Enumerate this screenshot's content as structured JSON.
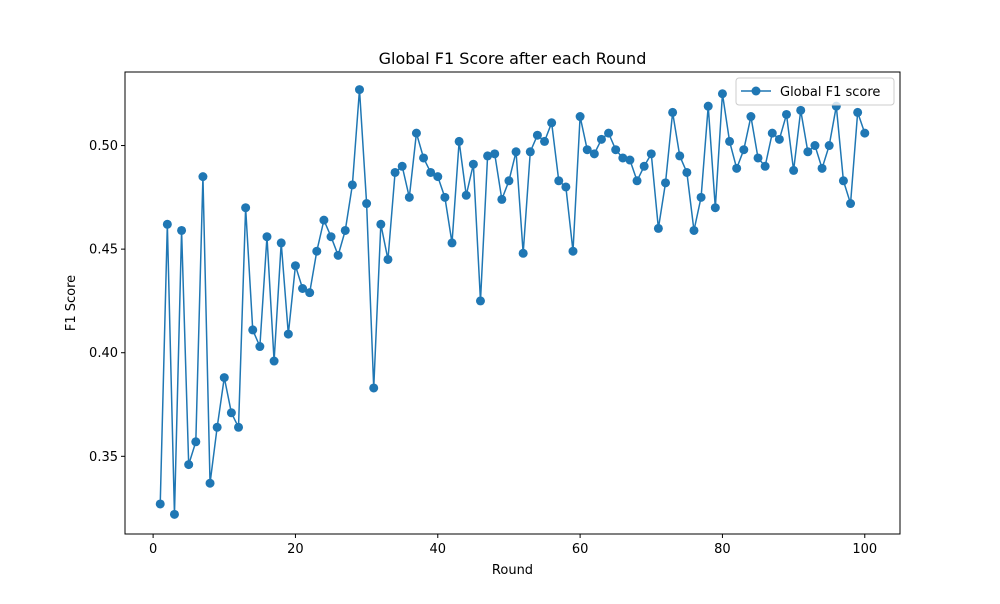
{
  "chart_data": {
    "type": "line",
    "title": "Global F1 Score after each Round",
    "xlabel": "Round",
    "ylabel": "F1 Score",
    "xlim": [
      -3.95,
      104.95
    ],
    "ylim": [
      0.3125,
      0.5355
    ],
    "xticks": [
      0,
      20,
      40,
      60,
      80,
      100
    ],
    "xtick_labels": [
      "0",
      "20",
      "40",
      "60",
      "80",
      "100"
    ],
    "yticks": [
      0.35,
      0.4,
      0.45,
      0.5
    ],
    "ytick_labels": [
      "0.35",
      "0.40",
      "0.45",
      "0.50"
    ],
    "grid": false,
    "legend_position": "top-right",
    "series": [
      {
        "name": "Global F1 score",
        "color": "#1f77b4",
        "marker": "circle",
        "x": [
          1,
          2,
          3,
          4,
          5,
          6,
          7,
          8,
          9,
          10,
          11,
          12,
          13,
          14,
          15,
          16,
          17,
          18,
          19,
          20,
          21,
          22,
          23,
          24,
          25,
          26,
          27,
          28,
          29,
          30,
          31,
          32,
          33,
          34,
          35,
          36,
          37,
          38,
          39,
          40,
          41,
          42,
          43,
          44,
          45,
          46,
          47,
          48,
          49,
          50,
          51,
          52,
          53,
          54,
          55,
          56,
          57,
          58,
          59,
          60,
          61,
          62,
          63,
          64,
          65,
          66,
          67,
          68,
          69,
          70,
          71,
          72,
          73,
          74,
          75,
          76,
          77,
          78,
          79,
          80,
          81,
          82,
          83,
          84,
          85,
          86,
          87,
          88,
          89,
          90,
          91,
          92,
          93,
          94,
          95,
          96,
          97,
          98,
          99,
          100
        ],
        "y": [
          0.327,
          0.462,
          0.322,
          0.459,
          0.346,
          0.357,
          0.485,
          0.337,
          0.364,
          0.388,
          0.371,
          0.364,
          0.47,
          0.411,
          0.403,
          0.456,
          0.396,
          0.453,
          0.409,
          0.442,
          0.431,
          0.429,
          0.449,
          0.464,
          0.456,
          0.447,
          0.459,
          0.481,
          0.527,
          0.472,
          0.383,
          0.462,
          0.445,
          0.487,
          0.49,
          0.475,
          0.506,
          0.494,
          0.487,
          0.485,
          0.475,
          0.453,
          0.502,
          0.476,
          0.491,
          0.425,
          0.495,
          0.496,
          0.474,
          0.483,
          0.497,
          0.448,
          0.497,
          0.505,
          0.502,
          0.511,
          0.483,
          0.48,
          0.449,
          0.514,
          0.498,
          0.496,
          0.503,
          0.506,
          0.498,
          0.494,
          0.493,
          0.483,
          0.49,
          0.496,
          0.46,
          0.482,
          0.516,
          0.495,
          0.487,
          0.459,
          0.475,
          0.519,
          0.47,
          0.525,
          0.502,
          0.489,
          0.498,
          0.514,
          0.494,
          0.49,
          0.506,
          0.503,
          0.515,
          0.488,
          0.517,
          0.497,
          0.5,
          0.489,
          0.5,
          0.519,
          0.483,
          0.472,
          0.516,
          0.506
        ]
      }
    ]
  }
}
